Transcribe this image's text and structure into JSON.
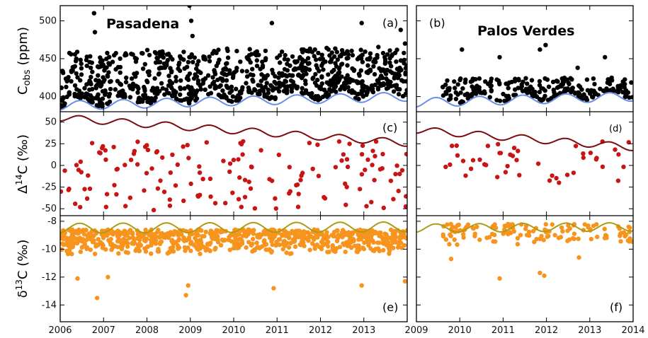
{
  "chart_data": [
    {
      "panel": "a",
      "site": "Pasadena",
      "type": "scatter",
      "panel_label": "(a)",
      "title": "Pasadena",
      "xlim": [
        2006,
        2014
      ],
      "ylim": [
        380,
        520
      ],
      "yticks": [
        400,
        450,
        500
      ],
      "ylabel_main": "C",
      "ylabel_sub": "obs",
      "ylabel_unit": "(ppm)",
      "series": [
        {
          "role": "observations",
          "color": "#000000",
          "y_range": [
            385,
            460
          ],
          "outliers": [
            [
              2006.78,
              510
            ],
            [
              2006.8,
              485
            ],
            [
              2007.9,
              457
            ],
            [
              2008.98,
              520
            ],
            [
              2009.02,
              500
            ],
            [
              2009.05,
              480
            ],
            [
              2010.88,
              497
            ],
            [
              2012.95,
              497
            ],
            [
              2013.85,
              488
            ],
            [
              2013.95,
              470
            ]
          ]
        },
        {
          "role": "background",
          "color": "#6a8ee8",
          "baseline": [
            [
              2006,
              388
            ],
            [
              2014,
              400
            ]
          ],
          "seasonal_amplitude": 6
        }
      ]
    },
    {
      "panel": "b",
      "site": "Palos Verdes",
      "type": "scatter",
      "panel_label": "(b)",
      "title": "Palos Verdes",
      "xlim": [
        2009,
        2014
      ],
      "ylim": [
        380,
        520
      ],
      "series": [
        {
          "role": "observations",
          "color": "#000000",
          "x_range": [
            2009.6,
            2014
          ],
          "y_range": [
            385,
            425
          ],
          "outliers": [
            [
              2010.05,
              462
            ],
            [
              2010.92,
              452
            ],
            [
              2011.85,
              462
            ],
            [
              2011.98,
              468
            ],
            [
              2012.72,
              438
            ],
            [
              2013.35,
              452
            ]
          ]
        },
        {
          "role": "background",
          "color": "#6a8ee8",
          "baseline": [
            [
              2009,
              392
            ],
            [
              2014,
              400
            ]
          ],
          "seasonal_amplitude": 6
        }
      ]
    },
    {
      "panel": "c",
      "site": "Pasadena",
      "type": "scatter",
      "panel_label": "(c)",
      "xlim": [
        2006,
        2014
      ],
      "ylim": [
        -58,
        62
      ],
      "yticks": [
        50,
        25,
        0,
        -25,
        -50
      ],
      "ylabel_main": "Δ",
      "ylabel_sup": "14",
      "ylabel_rest": "C (‰)",
      "series": [
        {
          "role": "observations",
          "color": "#c81414",
          "y_range": [
            -52,
            28
          ]
        },
        {
          "role": "background",
          "color": "#7a0c0c",
          "baseline": [
            [
              2006,
              55
            ],
            [
              2014,
              26
            ]
          ],
          "seasonal_amplitude": 4
        }
      ]
    },
    {
      "panel": "d",
      "site": "Palos Verdes",
      "type": "scatter",
      "panel_label": "(d)",
      "xlim": [
        2009,
        2014
      ],
      "ylim": [
        -58,
        62
      ],
      "series": [
        {
          "role": "observations",
          "color": "#c81414",
          "x_range": [
            2009.6,
            2014
          ],
          "y_range": [
            -20,
            30
          ]
        },
        {
          "role": "background",
          "color": "#7a0c0c",
          "baseline": [
            [
              2009,
              41
            ],
            [
              2014,
              21
            ]
          ],
          "seasonal_amplitude": 4
        }
      ]
    },
    {
      "panel": "e",
      "site": "Pasadena",
      "type": "scatter",
      "panel_label": "(e)",
      "xlim": [
        2006,
        2014
      ],
      "ylim": [
        -15.2,
        -7.6
      ],
      "yticks": [
        -8,
        -10,
        -12,
        -14
      ],
      "ylabel_main": "δ",
      "ylabel_sup": "13",
      "ylabel_rest": "C (‰)",
      "series": [
        {
          "role": "observations",
          "color": "#f7941d",
          "y_range": [
            -11,
            -8.6
          ],
          "outliers": [
            [
              2006.85,
              -13.5
            ],
            [
              2008.9,
              -13.3
            ],
            [
              2008.95,
              -12.6
            ],
            [
              2010.92,
              -12.8
            ],
            [
              2012.95,
              -12.6
            ],
            [
              2013.95,
              -12.3
            ],
            [
              2006.4,
              -12.1
            ],
            [
              2007.1,
              -12
            ]
          ]
        },
        {
          "role": "background",
          "color": "#b09a12",
          "baseline": [
            [
              2006,
              -8.5
            ],
            [
              2014,
              -8.4
            ]
          ],
          "seasonal_amplitude": 0.35
        }
      ]
    },
    {
      "panel": "f",
      "site": "Palos Verdes",
      "type": "scatter",
      "panel_label": "(f)",
      "xlim": [
        2009,
        2014
      ],
      "ylim": [
        -15.2,
        -7.6
      ],
      "series": [
        {
          "role": "observations",
          "color": "#f7941d",
          "x_range": [
            2009.6,
            2014
          ],
          "y_range": [
            -10.2,
            -8.2
          ],
          "outliers": [
            [
              2009.8,
              -10.7
            ],
            [
              2010.92,
              -12.1
            ],
            [
              2011.85,
              -11.7
            ],
            [
              2011.95,
              -11.9
            ],
            [
              2012.75,
              -10.6
            ]
          ]
        },
        {
          "role": "background",
          "color": "#b09a12",
          "baseline": [
            [
              2009,
              -8.5
            ],
            [
              2014,
              -8.4
            ]
          ],
          "seasonal_amplitude": 0.3
        }
      ]
    }
  ],
  "x_axis_left": {
    "ticks": [
      "2006",
      "2007",
      "2008",
      "2009",
      "2010",
      "2011",
      "2012",
      "2013"
    ]
  },
  "x_axis_right": {
    "ticks": [
      "2009",
      "2010",
      "2011",
      "2012",
      "2013",
      "2014"
    ]
  }
}
